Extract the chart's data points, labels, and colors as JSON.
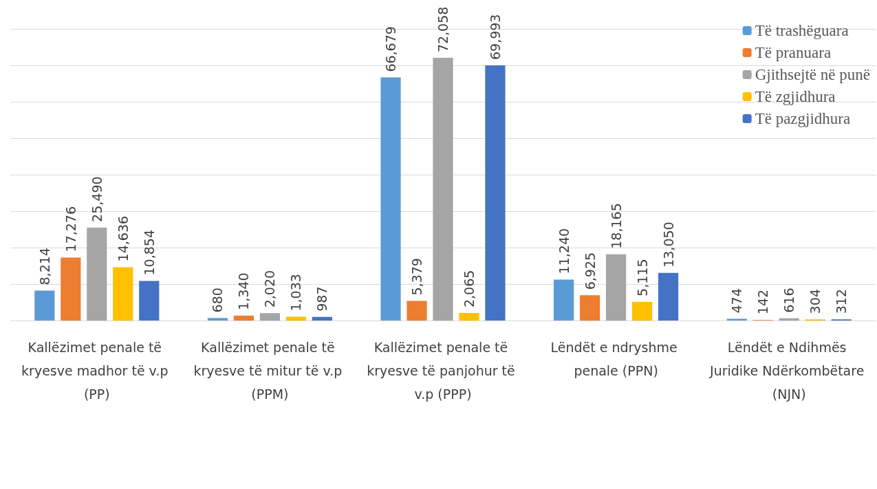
{
  "chart_data": {
    "type": "bar",
    "categories": [
      "Kallëzimet penale të kryesve madhor të v.p (PP)",
      "Kallëzimet penale të kryesve të mitur të v.p (PPM)",
      "Kallëzimet penale të kryesve të panjohur të v.p (PPP)",
      "Lëndët e ndryshme penale (PPN)",
      "Lëndët e Ndihmës Juridike Ndërkombëtare (NJN)"
    ],
    "series": [
      {
        "name": "Të trashëguara",
        "color": "#5b9bd5",
        "values": [
          8214,
          680,
          66679,
          11240,
          474
        ],
        "value_labels": [
          "8,214",
          "680",
          "66,679",
          "11,240",
          "474"
        ]
      },
      {
        "name": "Të pranuara",
        "color": "#ed7d31",
        "values": [
          17276,
          1340,
          5379,
          6925,
          142
        ],
        "value_labels": [
          "17,276",
          "1,340",
          "5,379",
          "6,925",
          "142"
        ]
      },
      {
        "name": "Gjithsejtë në punë",
        "color": "#a5a5a5",
        "values": [
          25490,
          2020,
          72058,
          18165,
          616
        ],
        "value_labels": [
          "25,490",
          "2,020",
          "72,058",
          "18,165",
          "616"
        ]
      },
      {
        "name": "Të zgjidhura",
        "color": "#ffc000",
        "values": [
          14636,
          1033,
          2065,
          5115,
          304
        ],
        "value_labels": [
          "14,636",
          "1,033",
          "2,065",
          "5,115",
          "304"
        ]
      },
      {
        "name": "Të pazgjidhura",
        "color": "#4472c4",
        "values": [
          10854,
          987,
          69993,
          13050,
          312
        ],
        "value_labels": [
          "10,854",
          "987",
          "69,993",
          "13,050",
          "312"
        ]
      }
    ],
    "ylim": [
      0,
      80000
    ],
    "yticks": [
      0,
      10000,
      20000,
      30000,
      40000,
      50000,
      60000,
      70000,
      80000
    ],
    "tick_labels": "x",
    "grid": "y",
    "legend": "top right"
  }
}
